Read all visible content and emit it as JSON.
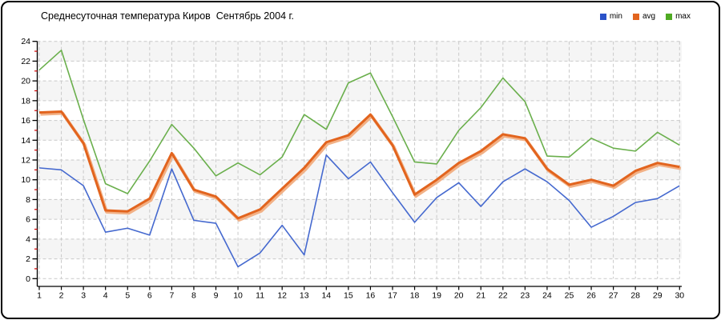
{
  "window": {
    "background": "#ffffff",
    "border_color": "#000000"
  },
  "title": "Среднесуточная температура Киров  Сентябрь 2004 г.",
  "legend": [
    {
      "label": "min",
      "color": "#2a52c8"
    },
    {
      "label": "avg",
      "color": "#e2641e"
    },
    {
      "label": "max",
      "color": "#4faa23"
    }
  ],
  "chart_data": {
    "type": "line",
    "title": "Среднесуточная температура Киров  Сентябрь 2004 г.",
    "xlabel": "",
    "ylabel": "",
    "x": [
      1,
      2,
      3,
      4,
      5,
      6,
      7,
      8,
      9,
      10,
      11,
      12,
      13,
      14,
      15,
      16,
      17,
      18,
      19,
      20,
      21,
      22,
      23,
      24,
      25,
      26,
      27,
      28,
      29,
      30
    ],
    "series": [
      {
        "name": "min",
        "color": "#4569cf",
        "stroke_width": 1.6,
        "values": [
          11.2,
          11.0,
          9.4,
          4.7,
          5.1,
          4.4,
          11.1,
          5.9,
          5.6,
          1.2,
          2.6,
          5.4,
          2.4,
          12.5,
          10.1,
          11.8,
          8.7,
          5.7,
          8.2,
          9.7,
          7.3,
          9.8,
          11.1,
          9.8,
          7.9,
          5.2,
          6.3,
          7.7,
          8.1,
          9.4
        ]
      },
      {
        "name": "avg",
        "color": "#e2641e",
        "stroke_width": 3,
        "values": [
          16.8,
          16.9,
          13.7,
          6.9,
          6.8,
          8.1,
          12.7,
          9.0,
          8.3,
          6.1,
          7.0,
          9.1,
          11.2,
          13.8,
          14.5,
          16.6,
          13.5,
          8.5,
          10.0,
          11.7,
          12.9,
          14.6,
          14.2,
          11.1,
          9.5,
          10.0,
          9.4,
          10.9,
          11.7,
          11.3
        ]
      },
      {
        "name": "max",
        "color": "#6aaf4c",
        "stroke_width": 1.6,
        "values": [
          21.1,
          23.1,
          16.1,
          9.6,
          8.6,
          11.9,
          15.6,
          13.2,
          10.4,
          11.7,
          10.5,
          12.3,
          16.6,
          15.1,
          19.8,
          20.8,
          16.4,
          11.8,
          11.6,
          15.0,
          17.3,
          20.3,
          17.9,
          12.4,
          12.3,
          14.2,
          13.2,
          12.9,
          14.8,
          13.5
        ]
      }
    ],
    "ylim": [
      0,
      24
    ],
    "y_major_step": 2,
    "y_ticks": [
      0,
      2,
      4,
      6,
      8,
      10,
      12,
      14,
      16,
      18,
      20,
      22,
      24
    ],
    "y_minor_ticks": [
      1,
      3,
      5,
      7,
      9,
      11,
      13,
      15,
      17,
      19,
      21,
      23
    ],
    "grid": "dashed",
    "grid_color": "#c9c9c9",
    "band_color": "#f5f5f5",
    "axis_color": "#000000",
    "minor_tick_color": "#d40000",
    "avg_shadow_color": "#f2b186",
    "legend_position": "top-right"
  }
}
